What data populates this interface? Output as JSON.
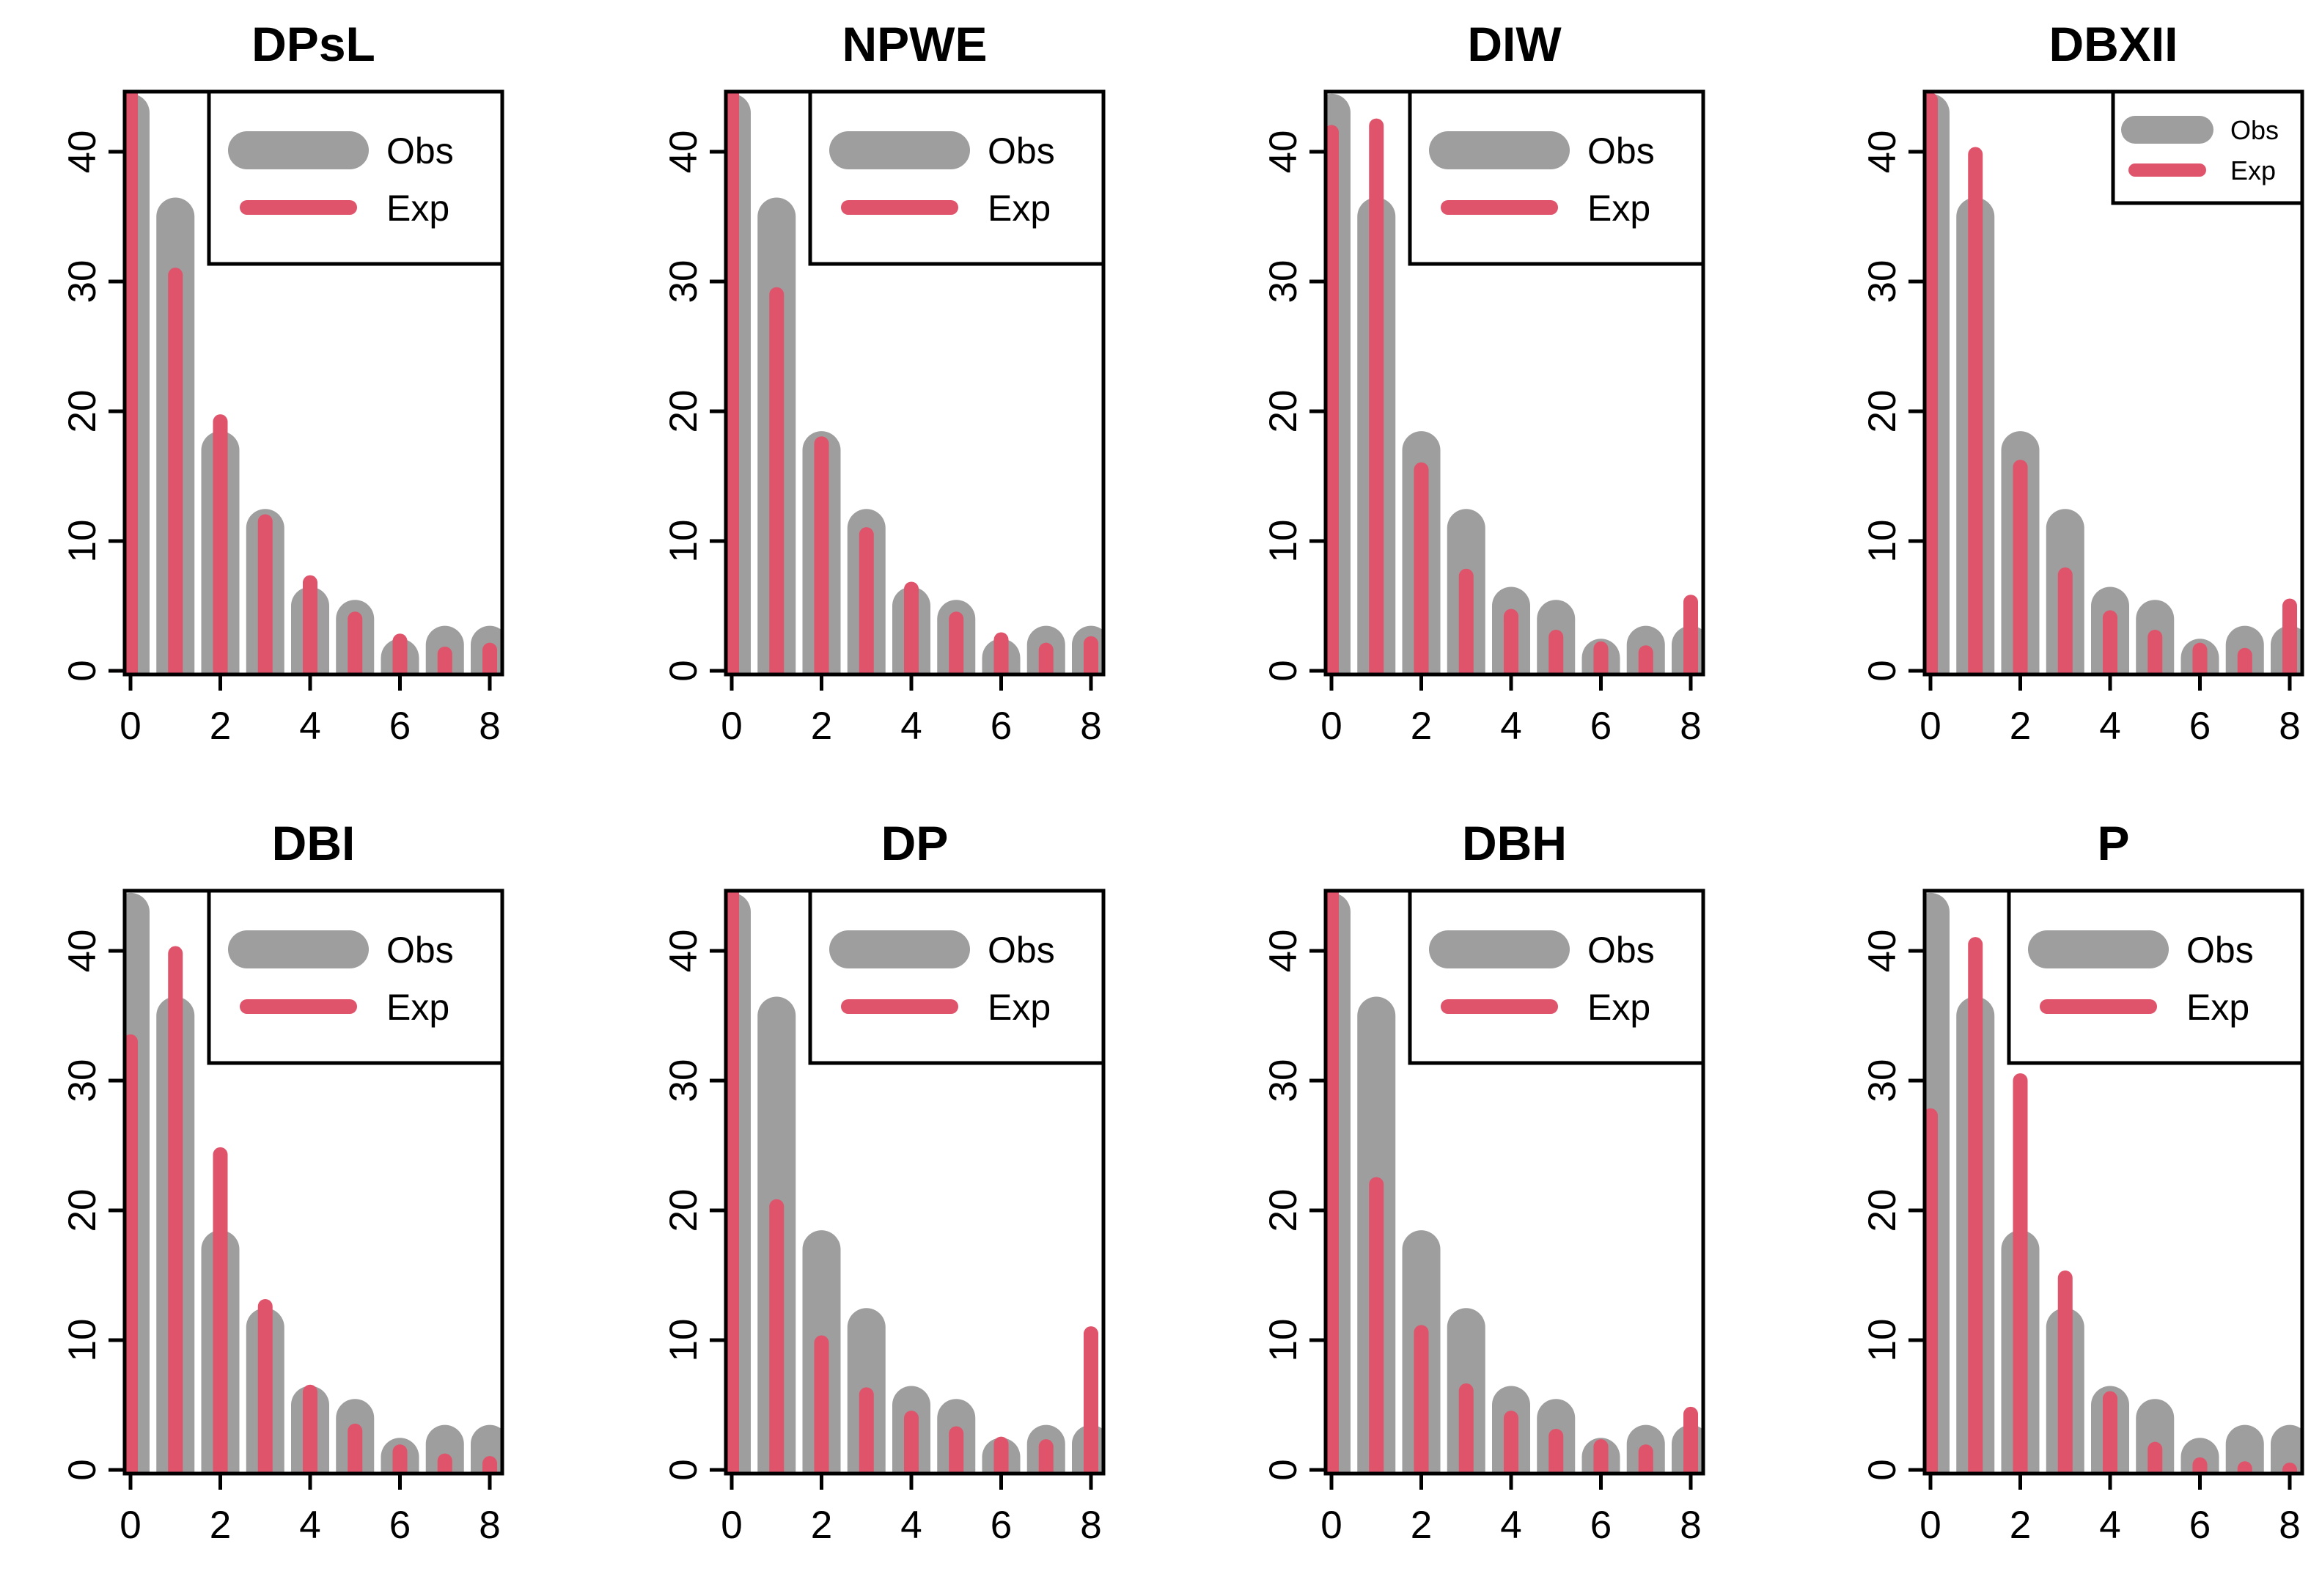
{
  "colors": {
    "obs": "#9e9e9e",
    "exp": "#df536b",
    "axis": "#000000",
    "background": "#ffffff"
  },
  "chart_data": [
    {
      "type": "bar",
      "title": "DPsL",
      "x": [
        0,
        1,
        2,
        3,
        4,
        5,
        6,
        7,
        8
      ],
      "xticks": [
        "0",
        "2",
        "4",
        "6",
        "8"
      ],
      "yticks": [
        "0",
        "10",
        "20",
        "30",
        "40"
      ],
      "ylim": [
        0,
        45
      ],
      "legend": {
        "position": "top-right",
        "size": "large",
        "labels": [
          "Obs",
          "Exp"
        ]
      },
      "series": [
        {
          "name": "Obs",
          "values": [
            43,
            35,
            17,
            11,
            5,
            4,
            1,
            2,
            2
          ]
        },
        {
          "name": "Exp",
          "values": [
            44.5,
            30.5,
            19.2,
            11.5,
            6.8,
            4.0,
            2.3,
            1.3,
            1.6
          ]
        }
      ]
    },
    {
      "type": "bar",
      "title": "NPWE",
      "x": [
        0,
        1,
        2,
        3,
        4,
        5,
        6,
        7,
        8
      ],
      "xticks": [
        "0",
        "2",
        "4",
        "6",
        "8"
      ],
      "yticks": [
        "0",
        "10",
        "20",
        "30",
        "40"
      ],
      "ylim": [
        0,
        45
      ],
      "legend": {
        "position": "top-right",
        "size": "large",
        "labels": [
          "Obs",
          "Exp"
        ]
      },
      "series": [
        {
          "name": "Obs",
          "values": [
            43,
            35,
            17,
            11,
            5,
            4,
            1,
            2,
            2
          ]
        },
        {
          "name": "Exp",
          "values": [
            44.5,
            29.0,
            17.5,
            10.5,
            6.3,
            4.0,
            2.4,
            1.6,
            2.1
          ]
        }
      ]
    },
    {
      "type": "bar",
      "title": "DIW",
      "x": [
        0,
        1,
        2,
        3,
        4,
        5,
        6,
        7,
        8
      ],
      "xticks": [
        "0",
        "2",
        "4",
        "6",
        "8"
      ],
      "yticks": [
        "0",
        "10",
        "20",
        "30",
        "40"
      ],
      "ylim": [
        0,
        45
      ],
      "legend": {
        "position": "top-right",
        "size": "large",
        "labels": [
          "Obs",
          "Exp"
        ]
      },
      "series": [
        {
          "name": "Obs",
          "values": [
            43,
            35,
            17,
            11,
            5,
            4,
            1,
            2,
            2
          ]
        },
        {
          "name": "Exp",
          "values": [
            41.5,
            42.0,
            15.5,
            7.3,
            4.2,
            2.6,
            1.7,
            1.4,
            5.3
          ]
        }
      ]
    },
    {
      "type": "bar",
      "title": "DBXII",
      "x": [
        0,
        1,
        2,
        3,
        4,
        5,
        6,
        7,
        8
      ],
      "xticks": [
        "0",
        "2",
        "4",
        "6",
        "8"
      ],
      "yticks": [
        "0",
        "10",
        "20",
        "30",
        "40"
      ],
      "ylim": [
        0,
        45
      ],
      "legend": {
        "position": "top-right",
        "size": "small",
        "labels": [
          "Obs",
          "Exp"
        ]
      },
      "series": [
        {
          "name": "Obs",
          "values": [
            43,
            35,
            17,
            11,
            5,
            4,
            1,
            2,
            2
          ]
        },
        {
          "name": "Exp",
          "values": [
            44.0,
            39.8,
            15.7,
            7.4,
            4.1,
            2.6,
            1.6,
            1.2,
            5.0
          ]
        }
      ]
    },
    {
      "type": "bar",
      "title": "DBI",
      "x": [
        0,
        1,
        2,
        3,
        4,
        5,
        6,
        7,
        8
      ],
      "xticks": [
        "0",
        "2",
        "4",
        "6",
        "8"
      ],
      "yticks": [
        "0",
        "10",
        "20",
        "30",
        "40"
      ],
      "ylim": [
        0,
        45
      ],
      "legend": {
        "position": "top-right",
        "size": "large",
        "labels": [
          "Obs",
          "Exp"
        ]
      },
      "series": [
        {
          "name": "Obs",
          "values": [
            43,
            35,
            17,
            11,
            5,
            4,
            1,
            2,
            2
          ]
        },
        {
          "name": "Exp",
          "values": [
            33.0,
            39.8,
            24.3,
            12.6,
            6.0,
            3.0,
            1.4,
            0.7,
            0.5
          ]
        }
      ]
    },
    {
      "type": "bar",
      "title": "DP",
      "x": [
        0,
        1,
        2,
        3,
        4,
        5,
        6,
        7,
        8
      ],
      "xticks": [
        "0",
        "2",
        "4",
        "6",
        "8"
      ],
      "yticks": [
        "0",
        "10",
        "20",
        "30",
        "40"
      ],
      "ylim": [
        0,
        45
      ],
      "legend": {
        "position": "top-right",
        "size": "large",
        "labels": [
          "Obs",
          "Exp"
        ]
      },
      "series": [
        {
          "name": "Obs",
          "values": [
            43,
            35,
            17,
            11,
            5,
            4,
            1,
            2,
            2
          ]
        },
        {
          "name": "Exp",
          "values": [
            44.5,
            20.3,
            9.8,
            5.8,
            4.0,
            2.8,
            2.0,
            1.8,
            10.5
          ]
        }
      ]
    },
    {
      "type": "bar",
      "title": "DBH",
      "x": [
        0,
        1,
        2,
        3,
        4,
        5,
        6,
        7,
        8
      ],
      "xticks": [
        "0",
        "2",
        "4",
        "6",
        "8"
      ],
      "yticks": [
        "0",
        "10",
        "20",
        "30",
        "40"
      ],
      "ylim": [
        0,
        45
      ],
      "legend": {
        "position": "top-right",
        "size": "large",
        "labels": [
          "Obs",
          "Exp"
        ]
      },
      "series": [
        {
          "name": "Obs",
          "values": [
            43,
            35,
            17,
            11,
            5,
            4,
            1,
            2,
            2
          ]
        },
        {
          "name": "Exp",
          "values": [
            44.5,
            22.0,
            10.6,
            6.1,
            4.0,
            2.6,
            1.8,
            1.4,
            4.3
          ]
        }
      ]
    },
    {
      "type": "bar",
      "title": "P",
      "x": [
        0,
        1,
        2,
        3,
        4,
        5,
        6,
        7,
        8
      ],
      "xticks": [
        "0",
        "2",
        "4",
        "6",
        "8"
      ],
      "yticks": [
        "0",
        "10",
        "20",
        "30",
        "40"
      ],
      "ylim": [
        0,
        45
      ],
      "legend": {
        "position": "top-right",
        "size": "large",
        "labels": [
          "Obs",
          "Exp"
        ]
      },
      "series": [
        {
          "name": "Obs",
          "values": [
            43,
            35,
            17,
            11,
            5,
            4,
            1,
            2,
            2
          ]
        },
        {
          "name": "Exp",
          "values": [
            27.3,
            40.5,
            30.0,
            14.8,
            5.5,
            1.6,
            0.4,
            0.1,
            0.0
          ]
        }
      ]
    }
  ]
}
